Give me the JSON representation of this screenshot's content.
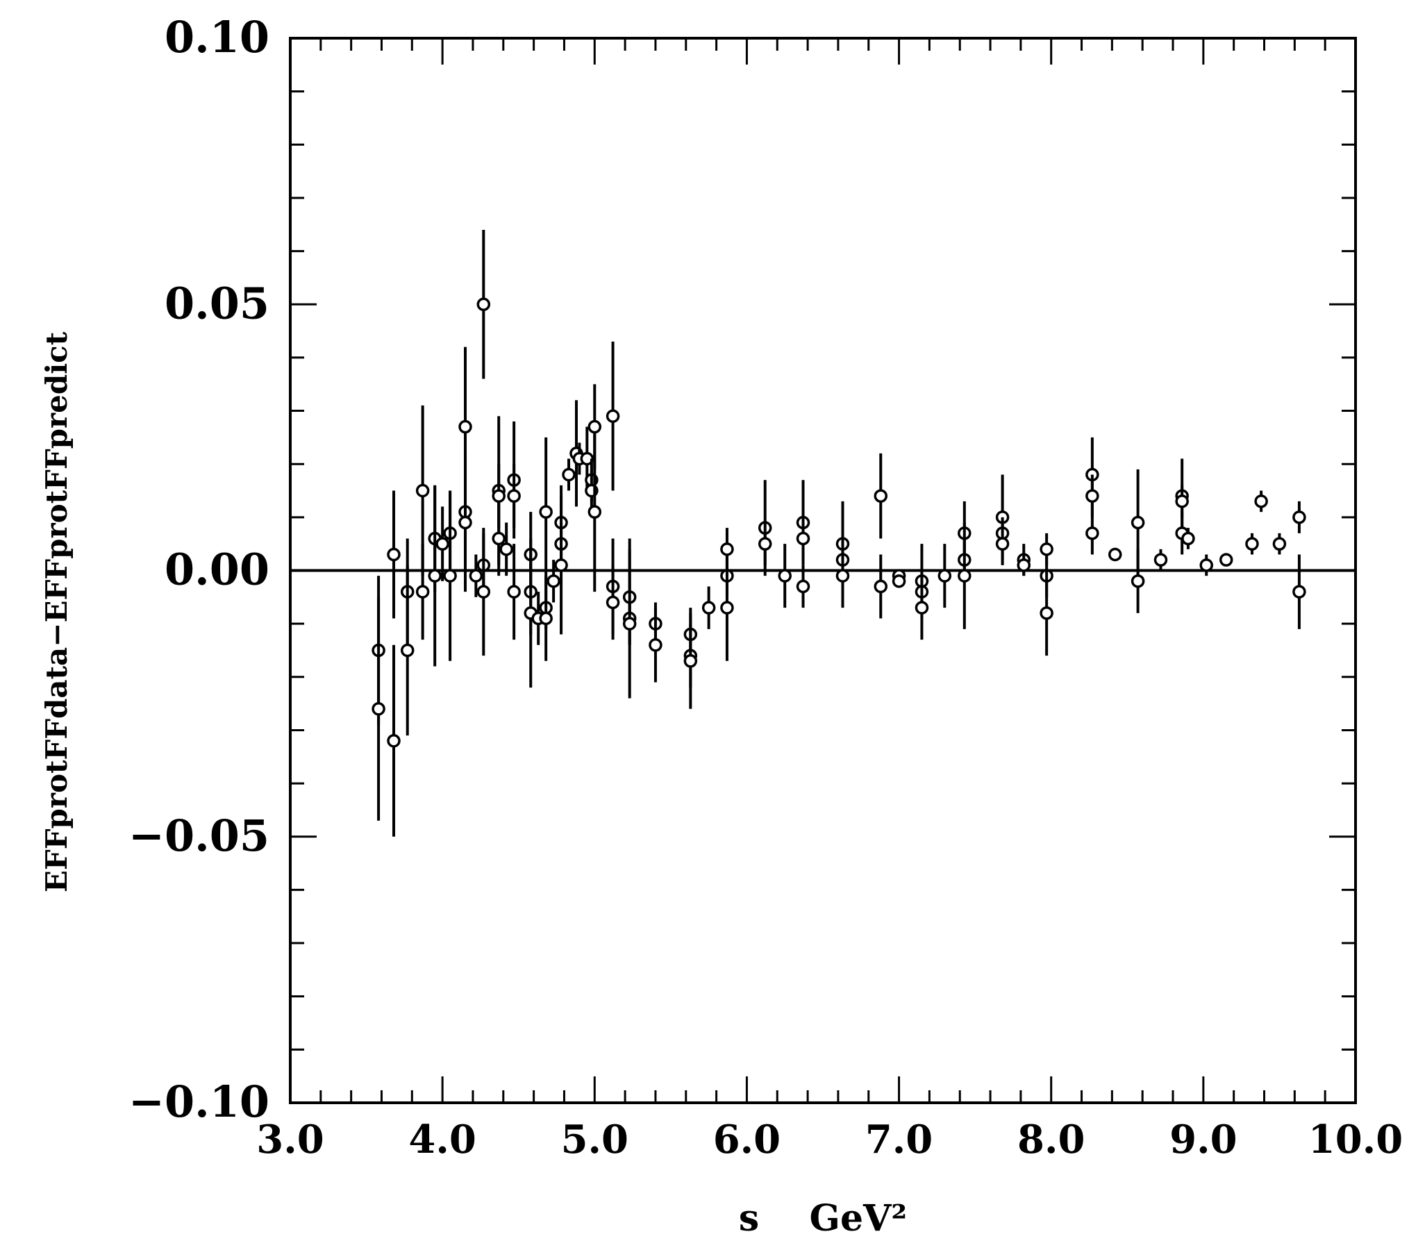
{
  "chart_data": {
    "type": "scatter",
    "xlabel": "s    GeV²",
    "ylabel": "EFFprotFFdata−EFFprotFFpredict",
    "xlim": [
      3.0,
      10.0
    ],
    "ylim": [
      -0.1,
      0.1
    ],
    "x_ticks": [
      "3.0",
      "4.0",
      "5.0",
      "6.0",
      "7.0",
      "8.0",
      "9.0",
      "10.0"
    ],
    "y_ticks": [
      "−0.10",
      "−0.05",
      "0.00",
      "0.05",
      "0.10"
    ],
    "zero_line": 0.0,
    "marker": "open-circle",
    "color": "#000000",
    "points": [
      {
        "x": 3.58,
        "y": -0.015,
        "err": 0.014
      },
      {
        "x": 3.58,
        "y": -0.026,
        "err": 0.021
      },
      {
        "x": 3.68,
        "y": 0.003,
        "err": 0.012
      },
      {
        "x": 3.68,
        "y": -0.032,
        "err": 0.018
      },
      {
        "x": 3.77,
        "y": -0.004,
        "err": 0.01
      },
      {
        "x": 3.77,
        "y": -0.015,
        "err": 0.016
      },
      {
        "x": 3.87,
        "y": 0.015,
        "err": 0.016
      },
      {
        "x": 3.87,
        "y": -0.004,
        "err": 0.009
      },
      {
        "x": 3.95,
        "y": 0.006,
        "err": 0.01
      },
      {
        "x": 3.95,
        "y": -0.001,
        "err": 0.017
      },
      {
        "x": 4.0,
        "y": 0.005,
        "err": 0.007
      },
      {
        "x": 4.05,
        "y": 0.007,
        "err": 0.008
      },
      {
        "x": 4.05,
        "y": -0.001,
        "err": 0.016
      },
      {
        "x": 4.15,
        "y": 0.027,
        "err": 0.015
      },
      {
        "x": 4.15,
        "y": 0.011,
        "err": 0.01
      },
      {
        "x": 4.15,
        "y": 0.009,
        "err": 0.013
      },
      {
        "x": 4.22,
        "y": -0.001,
        "err": 0.004
      },
      {
        "x": 4.27,
        "y": 0.05,
        "err": 0.014
      },
      {
        "x": 4.27,
        "y": 0.001,
        "err": 0.006
      },
      {
        "x": 4.27,
        "y": -0.004,
        "err": 0.012
      },
      {
        "x": 4.37,
        "y": 0.015,
        "err": 0.014
      },
      {
        "x": 4.37,
        "y": 0.014,
        "err": 0.006
      },
      {
        "x": 4.37,
        "y": 0.006,
        "err": 0.007
      },
      {
        "x": 4.42,
        "y": 0.004,
        "err": 0.005
      },
      {
        "x": 4.47,
        "y": 0.017,
        "err": 0.011
      },
      {
        "x": 4.47,
        "y": 0.014,
        "err": 0.006
      },
      {
        "x": 4.47,
        "y": -0.004,
        "err": 0.009
      },
      {
        "x": 4.58,
        "y": 0.003,
        "err": 0.008
      },
      {
        "x": 4.58,
        "y": -0.004,
        "err": 0.008
      },
      {
        "x": 4.58,
        "y": -0.008,
        "err": 0.014
      },
      {
        "x": 4.63,
        "y": -0.009,
        "err": 0.005
      },
      {
        "x": 4.68,
        "y": 0.011,
        "err": 0.014
      },
      {
        "x": 4.68,
        "y": -0.007,
        "err": 0.004
      },
      {
        "x": 4.68,
        "y": -0.009,
        "err": 0.008
      },
      {
        "x": 4.73,
        "y": -0.002,
        "err": 0.004
      },
      {
        "x": 4.78,
        "y": 0.009,
        "err": 0.007
      },
      {
        "x": 4.78,
        "y": 0.005,
        "err": 0.004
      },
      {
        "x": 4.78,
        "y": 0.001,
        "err": 0.013
      },
      {
        "x": 4.83,
        "y": 0.018,
        "err": 0.003
      },
      {
        "x": 4.88,
        "y": 0.022,
        "err": 0.01
      },
      {
        "x": 4.9,
        "y": 0.021,
        "err": 0.003
      },
      {
        "x": 4.95,
        "y": 0.021,
        "err": 0.006
      },
      {
        "x": 4.98,
        "y": 0.017,
        "err": 0.004
      },
      {
        "x": 4.98,
        "y": 0.015,
        "err": 0.004
      },
      {
        "x": 5.0,
        "y": 0.027,
        "err": 0.008
      },
      {
        "x": 5.0,
        "y": 0.011,
        "err": 0.015
      },
      {
        "x": 5.12,
        "y": 0.029,
        "err": 0.014
      },
      {
        "x": 5.12,
        "y": -0.003,
        "err": 0.009
      },
      {
        "x": 5.12,
        "y": -0.006,
        "err": 0.007
      },
      {
        "x": 5.23,
        "y": -0.005,
        "err": 0.009
      },
      {
        "x": 5.23,
        "y": -0.009,
        "err": 0.015
      },
      {
        "x": 5.23,
        "y": -0.01,
        "err": 0.004
      },
      {
        "x": 5.4,
        "y": -0.01,
        "err": 0.004
      },
      {
        "x": 5.4,
        "y": -0.014,
        "err": 0.007
      },
      {
        "x": 5.63,
        "y": -0.012,
        "err": 0.005
      },
      {
        "x": 5.63,
        "y": -0.016,
        "err": 0.006
      },
      {
        "x": 5.63,
        "y": -0.017,
        "err": 0.009
      },
      {
        "x": 5.75,
        "y": -0.007,
        "err": 0.004
      },
      {
        "x": 5.87,
        "y": 0.004,
        "err": 0.004
      },
      {
        "x": 5.87,
        "y": -0.001,
        "err": 0.004
      },
      {
        "x": 5.87,
        "y": -0.007,
        "err": 0.01
      },
      {
        "x": 6.12,
        "y": 0.008,
        "err": 0.009
      },
      {
        "x": 6.12,
        "y": 0.005,
        "err": 0.004
      },
      {
        "x": 6.25,
        "y": -0.001,
        "err": 0.006
      },
      {
        "x": 6.37,
        "y": 0.009,
        "err": 0.008
      },
      {
        "x": 6.37,
        "y": 0.006,
        "err": 0.004
      },
      {
        "x": 6.37,
        "y": -0.003,
        "err": 0.004
      },
      {
        "x": 6.63,
        "y": 0.005,
        "err": 0.008
      },
      {
        "x": 6.63,
        "y": 0.002,
        "err": 0.004
      },
      {
        "x": 6.63,
        "y": -0.001,
        "err": 0.006
      },
      {
        "x": 6.88,
        "y": 0.014,
        "err": 0.008
      },
      {
        "x": 6.88,
        "y": -0.003,
        "err": 0.006
      },
      {
        "x": 7.0,
        "y": -0.001,
        "err": 0.001
      },
      {
        "x": 7.0,
        "y": -0.002,
        "err": 0.001
      },
      {
        "x": 7.15,
        "y": -0.002,
        "err": 0.007
      },
      {
        "x": 7.15,
        "y": -0.004,
        "err": 0.004
      },
      {
        "x": 7.15,
        "y": -0.007,
        "err": 0.006
      },
      {
        "x": 7.3,
        "y": -0.001,
        "err": 0.006
      },
      {
        "x": 7.43,
        "y": 0.007,
        "err": 0.006
      },
      {
        "x": 7.43,
        "y": 0.002,
        "err": 0.004
      },
      {
        "x": 7.43,
        "y": -0.001,
        "err": 0.01
      },
      {
        "x": 7.68,
        "y": 0.01,
        "err": 0.008
      },
      {
        "x": 7.68,
        "y": 0.007,
        "err": 0.003
      },
      {
        "x": 7.68,
        "y": 0.005,
        "err": 0.004
      },
      {
        "x": 7.82,
        "y": 0.002,
        "err": 0.003
      },
      {
        "x": 7.82,
        "y": 0.001,
        "err": 0.002
      },
      {
        "x": 7.97,
        "y": 0.004,
        "err": 0.003
      },
      {
        "x": 7.97,
        "y": -0.001,
        "err": 0.004
      },
      {
        "x": 7.97,
        "y": -0.008,
        "err": 0.008
      },
      {
        "x": 8.27,
        "y": 0.018,
        "err": 0.007
      },
      {
        "x": 8.27,
        "y": 0.014,
        "err": 0.004
      },
      {
        "x": 8.27,
        "y": 0.007,
        "err": 0.004
      },
      {
        "x": 8.42,
        "y": 0.003,
        "err": 0.001
      },
      {
        "x": 8.57,
        "y": 0.009,
        "err": 0.01
      },
      {
        "x": 8.57,
        "y": -0.002,
        "err": 0.006
      },
      {
        "x": 8.72,
        "y": 0.002,
        "err": 0.002
      },
      {
        "x": 8.86,
        "y": 0.014,
        "err": 0.007
      },
      {
        "x": 8.86,
        "y": 0.013,
        "err": 0.003
      },
      {
        "x": 8.86,
        "y": 0.007,
        "err": 0.004
      },
      {
        "x": 8.9,
        "y": 0.006,
        "err": 0.002
      },
      {
        "x": 9.02,
        "y": 0.001,
        "err": 0.002
      },
      {
        "x": 9.15,
        "y": 0.002,
        "err": 0.001
      },
      {
        "x": 9.32,
        "y": 0.005,
        "err": 0.002
      },
      {
        "x": 9.38,
        "y": 0.013,
        "err": 0.002
      },
      {
        "x": 9.5,
        "y": 0.005,
        "err": 0.002
      },
      {
        "x": 9.63,
        "y": 0.01,
        "err": 0.003
      },
      {
        "x": 9.63,
        "y": -0.004,
        "err": 0.007
      }
    ]
  }
}
